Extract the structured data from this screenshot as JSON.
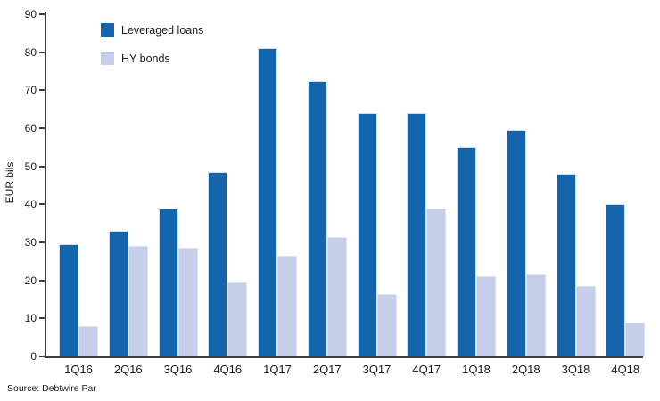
{
  "chart_data": {
    "type": "bar",
    "title": "",
    "ylabel": "EUR bils",
    "ylim": [
      0,
      90
    ],
    "ytick_step": 10,
    "grid": false,
    "legend_position": "top-left",
    "categories": [
      "1Q16",
      "2Q16",
      "3Q16",
      "4Q16",
      "1Q17",
      "2Q17",
      "3Q17",
      "4Q17",
      "1Q18",
      "2Q18",
      "3Q18",
      "4Q18"
    ],
    "series": [
      {
        "name": "Leveraged loans",
        "color": "#1565AC",
        "values": [
          29.5,
          33,
          39,
          48.5,
          81,
          72.5,
          64,
          64,
          55,
          59.5,
          48,
          40
        ]
      },
      {
        "name": "HY bonds",
        "color": "#C6CEE9",
        "values": [
          8,
          29,
          28.5,
          19.5,
          26.5,
          31.5,
          16.5,
          39,
          21,
          21.5,
          18.5,
          9
        ]
      }
    ]
  },
  "source_note": "Source: Debtwire Par"
}
